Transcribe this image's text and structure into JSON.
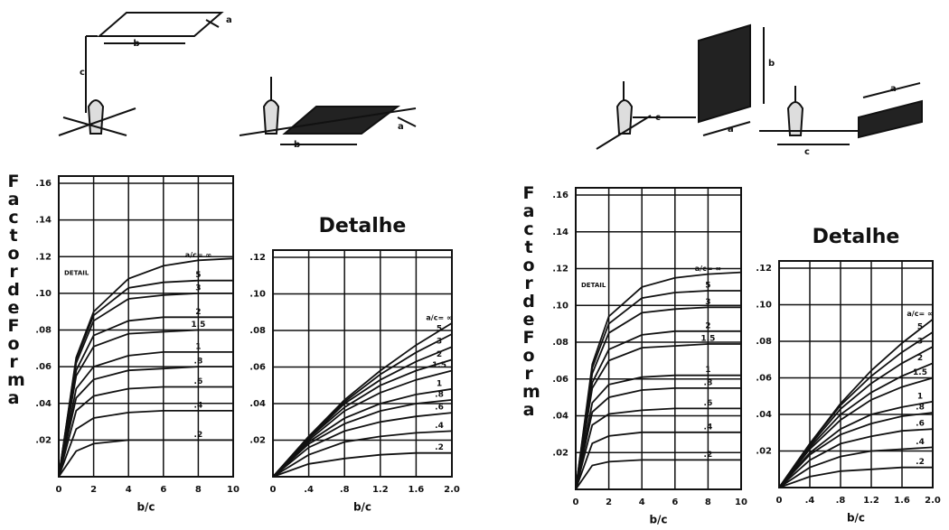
{
  "chart_data": [
    {
      "type": "line",
      "y_label": "Factor de Forma",
      "x_label": "b/c",
      "annotation": "DETAIL",
      "x": [
        0,
        1,
        2,
        4,
        6,
        8,
        10
      ],
      "xlim": [
        0,
        10
      ],
      "xticks": [
        0,
        2,
        4,
        6,
        8,
        10
      ],
      "ylim": [
        0,
        0.16
      ],
      "yticks": [
        {
          "value": 0.02,
          "label": ".02"
        },
        {
          "value": 0.04,
          "label": ".04"
        },
        {
          "value": 0.06,
          "label": ".06"
        },
        {
          "value": 0.08,
          "label": ".08"
        },
        {
          "value": 0.1,
          "label": ".10"
        },
        {
          "value": 0.12,
          "label": ".12"
        },
        {
          "value": 0.14,
          "label": ".14"
        },
        {
          "value": 0.16,
          "label": ".16"
        }
      ],
      "grid": true,
      "color": "#111111",
      "series": [
        {
          "name": "a/c= ∞",
          "values": [
            0,
            0.065,
            0.09,
            0.108,
            0.115,
            0.118,
            0.119
          ]
        },
        {
          "name": "5",
          "values": [
            0,
            0.064,
            0.088,
            0.103,
            0.106,
            0.107,
            0.107
          ]
        },
        {
          "name": "3",
          "values": [
            0,
            0.062,
            0.085,
            0.097,
            0.099,
            0.1,
            0.1
          ]
        },
        {
          "name": "2",
          "values": [
            0,
            0.058,
            0.077,
            0.085,
            0.087,
            0.087,
            0.087
          ]
        },
        {
          "name": "1.5",
          "values": [
            0,
            0.055,
            0.071,
            0.078,
            0.079,
            0.08,
            0.08
          ]
        },
        {
          "name": "1",
          "values": [
            0,
            0.048,
            0.06,
            0.066,
            0.068,
            0.068,
            0.068
          ]
        },
        {
          "name": ".8",
          "values": [
            0,
            0.043,
            0.053,
            0.058,
            0.059,
            0.06,
            0.06
          ]
        },
        {
          "name": ".6",
          "values": [
            0,
            0.036,
            0.044,
            0.048,
            0.049,
            0.049,
            0.049
          ]
        },
        {
          "name": ".4",
          "values": [
            0,
            0.026,
            0.032,
            0.035,
            0.036,
            0.036,
            0.036
          ]
        },
        {
          "name": ".2",
          "values": [
            0,
            0.014,
            0.018,
            0.02,
            0.02,
            0.02,
            0.02
          ]
        }
      ]
    },
    {
      "type": "line",
      "title": "Detalhe",
      "x_label": "b/c",
      "x": [
        0,
        0.4,
        0.8,
        1.2,
        1.6,
        2.0
      ],
      "xlim": [
        0,
        2
      ],
      "xticks": [
        0,
        {
          "value": 0.4,
          "label": ".4"
        },
        {
          "value": 0.8,
          "label": ".8"
        },
        1.2,
        1.6,
        {
          "value": 2,
          "label": "2.0"
        }
      ],
      "ylim": [
        0,
        0.12
      ],
      "yticks": [
        {
          "value": 0.02,
          "label": ".02"
        },
        {
          "value": 0.04,
          "label": ".04"
        },
        {
          "value": 0.06,
          "label": ".06"
        },
        {
          "value": 0.08,
          "label": ".08"
        },
        {
          "value": 0.1,
          "label": ".10"
        },
        {
          "value": 0.12,
          "label": ".12"
        }
      ],
      "grid": true,
      "color": "#111111",
      "series": [
        {
          "name": "a/c= ∞",
          "values": [
            0,
            0.022,
            0.042,
            0.058,
            0.072,
            0.084
          ]
        },
        {
          "name": "5",
          "values": [
            0,
            0.022,
            0.041,
            0.056,
            0.068,
            0.078
          ]
        },
        {
          "name": "3",
          "values": [
            0,
            0.021,
            0.04,
            0.053,
            0.063,
            0.071
          ]
        },
        {
          "name": "2",
          "values": [
            0,
            0.021,
            0.038,
            0.05,
            0.058,
            0.064
          ]
        },
        {
          "name": "1.5",
          "values": [
            0,
            0.02,
            0.036,
            0.046,
            0.053,
            0.058
          ]
        },
        {
          "name": "1",
          "values": [
            0,
            0.019,
            0.032,
            0.04,
            0.045,
            0.048
          ]
        },
        {
          "name": ".8",
          "values": [
            0,
            0.018,
            0.029,
            0.036,
            0.04,
            0.042
          ]
        },
        {
          "name": ".6",
          "values": [
            0,
            0.016,
            0.025,
            0.03,
            0.033,
            0.035
          ]
        },
        {
          "name": ".4",
          "values": [
            0,
            0.012,
            0.019,
            0.022,
            0.024,
            0.025
          ]
        },
        {
          "name": ".2",
          "values": [
            0,
            0.007,
            0.01,
            0.012,
            0.013,
            0.013
          ]
        }
      ]
    },
    {
      "type": "line",
      "y_label": "Factor de Forma",
      "x_label": "b/c",
      "annotation": "DETAIL",
      "x": [
        0,
        1,
        2,
        4,
        6,
        8,
        10
      ],
      "xlim": [
        0,
        10
      ],
      "xticks": [
        0,
        2,
        4,
        6,
        8,
        10
      ],
      "ylim": [
        0,
        0.16
      ],
      "yticks": [
        {
          "value": 0.02,
          "label": ".02"
        },
        {
          "value": 0.04,
          "label": ".04"
        },
        {
          "value": 0.06,
          "label": ".06"
        },
        {
          "value": 0.08,
          "label": ".08"
        },
        {
          "value": 0.1,
          "label": ".10"
        },
        {
          "value": 0.12,
          "label": ".12"
        },
        {
          "value": 0.14,
          "label": ".14"
        },
        {
          "value": 0.16,
          "label": ".16"
        }
      ],
      "grid": true,
      "color": "#111111",
      "series": [
        {
          "name": "a/c= ∞",
          "values": [
            0,
            0.068,
            0.094,
            0.11,
            0.115,
            0.117,
            0.118
          ]
        },
        {
          "name": "5",
          "values": [
            0,
            0.066,
            0.09,
            0.104,
            0.107,
            0.108,
            0.108
          ]
        },
        {
          "name": "3",
          "values": [
            0,
            0.063,
            0.085,
            0.096,
            0.098,
            0.099,
            0.099
          ]
        },
        {
          "name": "2",
          "values": [
            0,
            0.058,
            0.076,
            0.084,
            0.086,
            0.086,
            0.086
          ]
        },
        {
          "name": "1.5",
          "values": [
            0,
            0.055,
            0.07,
            0.077,
            0.078,
            0.079,
            0.079
          ]
        },
        {
          "name": "1",
          "values": [
            0,
            0.047,
            0.057,
            0.061,
            0.062,
            0.062,
            0.062
          ]
        },
        {
          "name": ".8",
          "values": [
            0,
            0.042,
            0.05,
            0.054,
            0.055,
            0.055,
            0.055
          ]
        },
        {
          "name": ".6",
          "values": [
            0,
            0.035,
            0.041,
            0.043,
            0.044,
            0.044,
            0.044
          ]
        },
        {
          "name": ".4",
          "values": [
            0,
            0.025,
            0.029,
            0.031,
            0.031,
            0.031,
            0.031
          ]
        },
        {
          "name": ".2",
          "values": [
            0,
            0.013,
            0.015,
            0.016,
            0.016,
            0.016,
            0.016
          ]
        }
      ]
    },
    {
      "type": "line",
      "title": "Detalhe",
      "x_label": "b/c",
      "x": [
        0,
        0.4,
        0.8,
        1.2,
        1.6,
        2.0
      ],
      "xlim": [
        0,
        2
      ],
      "xticks": [
        0,
        {
          "value": 0.4,
          "label": ".4"
        },
        {
          "value": 0.8,
          "label": ".8"
        },
        1.2,
        1.6,
        {
          "value": 2,
          "label": "2.0"
        }
      ],
      "ylim": [
        0,
        0.12
      ],
      "yticks": [
        {
          "value": 0.02,
          "label": ".02"
        },
        {
          "value": 0.04,
          "label": ".04"
        },
        {
          "value": 0.06,
          "label": ".06"
        },
        {
          "value": 0.08,
          "label": ".08"
        },
        {
          "value": 0.1,
          "label": ".10"
        },
        {
          "value": 0.12,
          "label": ".12"
        }
      ],
      "grid": true,
      "color": "#111111",
      "series": [
        {
          "name": "a/c= ∞",
          "values": [
            0,
            0.024,
            0.046,
            0.064,
            0.079,
            0.092
          ]
        },
        {
          "name": "5",
          "values": [
            0,
            0.024,
            0.045,
            0.061,
            0.074,
            0.085
          ]
        },
        {
          "name": "3",
          "values": [
            0,
            0.023,
            0.043,
            0.057,
            0.068,
            0.077
          ]
        },
        {
          "name": "2",
          "values": [
            0,
            0.022,
            0.04,
            0.052,
            0.061,
            0.068
          ]
        },
        {
          "name": "1.5",
          "values": [
            0,
            0.021,
            0.037,
            0.048,
            0.055,
            0.06
          ]
        },
        {
          "name": "1",
          "values": [
            0,
            0.019,
            0.032,
            0.04,
            0.044,
            0.047
          ]
        },
        {
          "name": ".8",
          "values": [
            0,
            0.018,
            0.029,
            0.035,
            0.039,
            0.041
          ]
        },
        {
          "name": ".6",
          "values": [
            0,
            0.015,
            0.024,
            0.028,
            0.031,
            0.032
          ]
        },
        {
          "name": ".4",
          "values": [
            0,
            0.011,
            0.017,
            0.02,
            0.021,
            0.022
          ]
        },
        {
          "name": ".2",
          "values": [
            0,
            0.006,
            0.009,
            0.01,
            0.011,
            0.011
          ]
        }
      ]
    }
  ],
  "illustrations": [
    {
      "labels": [
        "b",
        "a",
        "c"
      ]
    },
    {
      "labels": [
        "b",
        "a"
      ]
    },
    {
      "labels": [
        "c",
        "b",
        "a"
      ]
    },
    {
      "labels": [
        "c",
        "a"
      ]
    }
  ]
}
